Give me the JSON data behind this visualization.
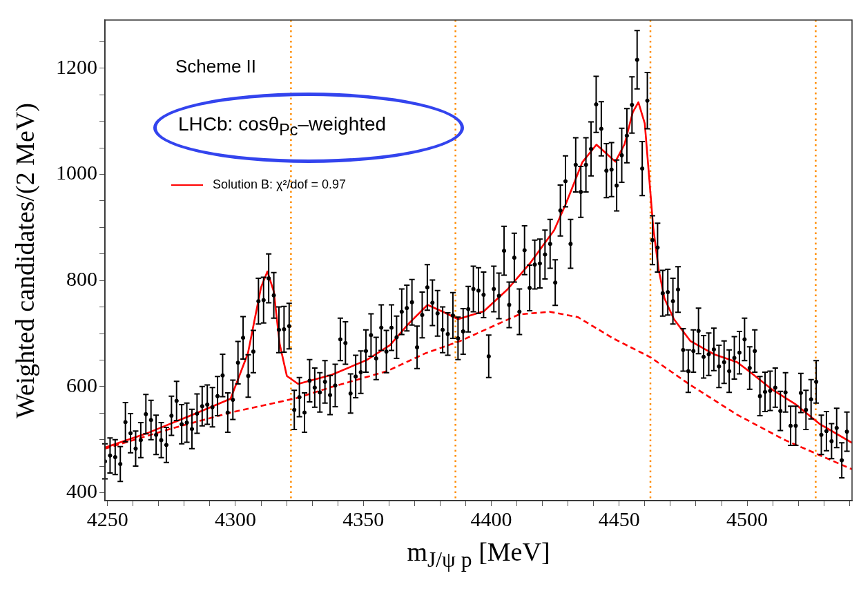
{
  "chart_data": {
    "type": "scatter",
    "xlabel": "m$_{J/ψ p}$ [MeV]",
    "ylabel": "Weighted candidates/(2 MeV)",
    "xlim": [
      4249,
      4541
    ],
    "ylim": [
      385,
      1291
    ],
    "xticks": [
      4250,
      {
        "value": 4260,
        "label": null
      },
      {
        "value": 4270,
        "label": null
      },
      {
        "value": 4280,
        "label": null
      },
      {
        "value": 4290,
        "label": null
      },
      4300,
      {
        "value": 4310,
        "label": null
      },
      {
        "value": 4320,
        "label": null
      },
      {
        "value": 4330,
        "label": null
      },
      {
        "value": 4340,
        "label": null
      },
      4350,
      {
        "value": 4360,
        "label": null
      },
      {
        "value": 4370,
        "label": null
      },
      {
        "value": 4380,
        "label": null
      },
      {
        "value": 4390,
        "label": null
      },
      4400,
      {
        "value": 4410,
        "label": null
      },
      {
        "value": 4420,
        "label": null
      },
      {
        "value": 4430,
        "label": null
      },
      {
        "value": 4440,
        "label": null
      },
      4450,
      {
        "value": 4460,
        "label": null
      },
      {
        "value": 4470,
        "label": null
      },
      {
        "value": 4480,
        "label": null
      },
      {
        "value": 4490,
        "label": null
      },
      4500,
      {
        "value": 4510,
        "label": null
      },
      {
        "value": 4520,
        "label": null
      },
      {
        "value": 4530,
        "label": null
      },
      {
        "value": 4540,
        "label": null
      }
    ],
    "yticks": [
      400,
      {
        "value": 450,
        "label": null
      },
      {
        "value": 500,
        "label": null
      },
      {
        "value": 550,
        "label": null
      },
      600,
      {
        "value": 650,
        "label": null
      },
      {
        "value": 700,
        "label": null
      },
      {
        "value": 750,
        "label": null
      },
      800,
      {
        "value": 850,
        "label": null
      },
      {
        "value": 900,
        "label": null
      },
      {
        "value": 950,
        "label": null
      },
      1000,
      {
        "value": 1050,
        "label": null
      },
      {
        "value": 1100,
        "label": null
      },
      {
        "value": 1150,
        "label": null
      },
      1200,
      {
        "value": 1250,
        "label": null
      }
    ],
    "legend": "top left",
    "annotations": [
      "Scheme II",
      "LHCb: cosθ$_{Pc}$–weighted"
    ],
    "ref_lines": [
      {
        "axis": "x",
        "value": 4321.7,
        "color": "#ff8c00",
        "line_style": "dotted"
      },
      {
        "axis": "x",
        "value": 4386,
        "color": "#ff8c00",
        "line_style": "dotted"
      },
      {
        "axis": "x",
        "value": 4462.2,
        "color": "#ff8c00",
        "line_style": "dotted"
      },
      {
        "axis": "x",
        "value": 4526.8,
        "color": "#ff8c00",
        "line_style": "dotted"
      }
    ],
    "series": [
      {
        "type": "scatter",
        "color": "#000000",
        "marker": "circle",
        "x": [
          4249,
          4251,
          4253,
          4255,
          4257,
          4259,
          4261,
          4263,
          4265,
          4267,
          4269,
          4271,
          4273,
          4275,
          4277,
          4279,
          4281,
          4283,
          4285,
          4287,
          4289,
          4291,
          4293,
          4295,
          4297,
          4299,
          4301,
          4303,
          4305,
          4307,
          4309,
          4311,
          4313,
          4315,
          4317,
          4319,
          4321,
          4323,
          4325,
          4327,
          4329,
          4331,
          4333,
          4335,
          4337,
          4339,
          4341,
          4343,
          4345,
          4347,
          4349,
          4351,
          4353,
          4355,
          4357,
          4359,
          4361,
          4363,
          4365,
          4367,
          4369,
          4371,
          4373,
          4375,
          4377,
          4379,
          4381,
          4383,
          4385,
          4387,
          4389,
          4391,
          4393,
          4395,
          4397,
          4399,
          4401,
          4403,
          4405,
          4407,
          4409,
          4411,
          4413,
          4415,
          4417,
          4419,
          4421,
          4423,
          4425,
          4427,
          4429,
          4431,
          4433,
          4435,
          4437,
          4439,
          4441,
          4443,
          4445,
          4447,
          4449,
          4451,
          4453,
          4455,
          4457,
          4459,
          4461,
          4463,
          4465,
          4467,
          4469,
          4471,
          4473,
          4475,
          4477,
          4479,
          4481,
          4483,
          4485,
          4487,
          4489,
          4491,
          4493,
          4495,
          4497,
          4499,
          4501,
          4503,
          4505,
          4507,
          4509,
          4511,
          4513,
          4515,
          4517,
          4519,
          4521,
          4523,
          4525,
          4527,
          4529,
          4531,
          4533,
          4535,
          4537,
          4539
        ],
        "values": [
          459,
          470,
          467,
          454,
          533,
          512,
          483,
          499,
          548,
          537,
          509,
          499,
          490,
          545,
          573,
          529,
          532,
          520,
          549,
          563,
          566,
          561,
          582,
          621,
          551,
          575,
          645,
          692,
          620,
          666,
          761,
          763,
          804,
          772,
          707,
          708,
          714,
          556,
          580,
          551,
          611,
          598,
          589,
          609,
          584,
          602,
          689,
          682,
          587,
          619,
          627,
          667,
          697,
          653,
          711,
          666,
          711,
          693,
          741,
          748,
          759,
          674,
          735,
          787,
          758,
          738,
          707,
          699,
          734,
          691,
          704,
          746,
          784,
          781,
          773,
          657,
          784,
          771,
          856,
          754,
          843,
          741,
          857,
          786,
          830,
          832,
          849,
          869,
          796,
          932,
          987,
          869,
          1018,
          967,
          1018,
          1048,
          1132,
          1086,
          1007,
          1009,
          979,
          1036,
          1073,
          1131,
          1216,
          1011,
          1139,
          876,
          862,
          776,
          778,
          761,
          783,
          669,
          629,
          667,
          705,
          656,
          661,
          670,
          638,
          646,
          629,
          654,
          664,
          689,
          635,
          667,
          582,
          590,
          592,
          598,
          554,
          589,
          526,
          526,
          588,
          556,
          576,
          609,
          509,
          516,
          497,
          522,
          461,
          515
        ],
        "errors": [
          33,
          33,
          33,
          33,
          37,
          37,
          33,
          33,
          37,
          37,
          37,
          33,
          33,
          37,
          37,
          37,
          37,
          37,
          37,
          37,
          37,
          37,
          37,
          40,
          37,
          37,
          40,
          40,
          40,
          40,
          43,
          43,
          46,
          43,
          43,
          43,
          43,
          37,
          37,
          37,
          40,
          37,
          37,
          40,
          37,
          40,
          40,
          40,
          37,
          40,
          40,
          40,
          40,
          40,
          43,
          40,
          43,
          40,
          43,
          43,
          43,
          40,
          43,
          43,
          43,
          43,
          43,
          40,
          43,
          40,
          43,
          43,
          43,
          43,
          43,
          40,
          43,
          43,
          46,
          43,
          46,
          43,
          46,
          43,
          46,
          46,
          46,
          46,
          43,
          48,
          48,
          46,
          51,
          48,
          51,
          51,
          53,
          51,
          51,
          51,
          48,
          51,
          51,
          53,
          55,
          51,
          53,
          46,
          46,
          43,
          43,
          43,
          43,
          40,
          40,
          40,
          43,
          40,
          40,
          40,
          40,
          40,
          40,
          40,
          40,
          40,
          40,
          40,
          37,
          37,
          37,
          37,
          37,
          37,
          37,
          37,
          37,
          37,
          37,
          40,
          37,
          37,
          33,
          37,
          33,
          37
        ]
      },
      {
        "type": "line",
        "name": "Solution B: χ²/dof = 0.97",
        "color": "#ff0000",
        "line_style": "solid",
        "x": [
          4249,
          4266,
          4284.3,
          4298.1,
          4304.9,
          4307.2,
          4310,
          4312.5,
          4315,
          4317.3,
          4320.1,
          4324.5,
          4337.5,
          4351.3,
          4360.4,
          4367.8,
          4375.1,
          4381.5,
          4387,
          4397.1,
          4406.3,
          4415.4,
          4424.6,
          4429.2,
          4435.6,
          4441.1,
          4444.8,
          4448.5,
          4452.1,
          4455.3,
          4457.5,
          4460,
          4461.8,
          4463.3,
          4465.4,
          4467.7,
          4471.4,
          4477.8,
          4487,
          4496.1,
          4500.7,
          4509.9,
          4519.1,
          4528.2,
          4541
        ],
        "values": [
          485,
          513,
          549,
          577,
          663,
          719,
          787,
          817,
          779,
          680,
          620,
          605,
          622,
          650,
          678,
          719,
          754,
          740,
          727,
          742,
          783,
          834,
          895,
          945,
          1023,
          1056,
          1040,
          1024,
          1057,
          1117,
          1136,
          1096,
          989,
          900,
          821,
          766,
          727,
          686,
          661,
          646,
          629,
          594,
          566,
          530,
          494
        ]
      },
      {
        "type": "line",
        "color": "#ff0000",
        "line_style": "dashed",
        "x": [
          4249,
          4275.1,
          4298.1,
          4323.7,
          4337.5,
          4359.2,
          4374.4,
          4387.9,
          4397.1,
          4410.9,
          4422.8,
          4433.8,
          4447.6,
          4462.3,
          4477.8,
          4496.1,
          4514.4,
          4541
        ],
        "values": [
          483,
          521,
          551,
          578,
          599,
          629,
          663,
          686,
          706,
          736,
          741,
          731,
          691,
          655,
          603,
          547,
          500,
          444
        ]
      }
    ]
  }
}
